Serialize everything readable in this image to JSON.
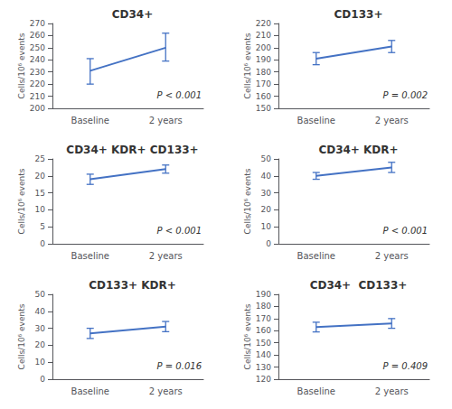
{
  "chart_data": [
    {
      "type": "line",
      "title": "CD34+",
      "ylabel": "Cells/10⁶ events",
      "categories": [
        "Baseline",
        "2 years"
      ],
      "values": [
        231,
        250
      ],
      "error_low": [
        11,
        11
      ],
      "error_high": [
        10,
        12
      ],
      "color": "#4472C4",
      "ylim": [
        200,
        270
      ],
      "yticks": [
        200,
        210,
        220,
        230,
        240,
        250,
        260,
        270
      ],
      "annotation": "P < 0.001",
      "grid": false
    },
    {
      "type": "line",
      "title": "CD133+",
      "ylabel": "Cells/10⁶ events",
      "categories": [
        "Baseline",
        "2 years"
      ],
      "values": [
        191,
        201
      ],
      "error_low": [
        5,
        5
      ],
      "error_high": [
        5,
        5
      ],
      "color": "#4472C4",
      "ylim": [
        150,
        220
      ],
      "yticks": [
        150,
        160,
        170,
        180,
        190,
        200,
        210,
        220
      ],
      "annotation": "P = 0.002",
      "grid": false
    },
    {
      "type": "line",
      "title": "CD34+ KDR+ CD133+",
      "ylabel": "Cells/10⁶ events",
      "categories": [
        "Baseline",
        "2 years"
      ],
      "values": [
        19.0,
        22.0
      ],
      "error_low": [
        1.5,
        1.2
      ],
      "error_high": [
        1.5,
        1.2
      ],
      "color": "#4472C4",
      "ylim": [
        0,
        25
      ],
      "yticks": [
        0,
        5,
        10,
        15,
        20,
        25
      ],
      "annotation": "P < 0.001",
      "grid": false
    },
    {
      "type": "line",
      "title": "CD34+ KDR+",
      "ylabel": "Cells/10⁶ events",
      "categories": [
        "Baseline",
        "2 years"
      ],
      "values": [
        40,
        45
      ],
      "error_low": [
        2,
        3
      ],
      "error_high": [
        2,
        3
      ],
      "color": "#4472C4",
      "ylim": [
        0,
        50
      ],
      "yticks": [
        0,
        10,
        20,
        30,
        40,
        50
      ],
      "annotation": "P < 0.001",
      "grid": false
    },
    {
      "type": "line",
      "title": "CD133+ KDR+",
      "ylabel": "Cells/10⁶ events",
      "categories": [
        "Baseline",
        "2 years"
      ],
      "values": [
        27,
        31
      ],
      "error_low": [
        3,
        3
      ],
      "error_high": [
        3,
        3
      ],
      "color": "#4472C4",
      "ylim": [
        0,
        50
      ],
      "yticks": [
        0,
        10,
        20,
        30,
        40,
        50
      ],
      "annotation": "P = 0.016",
      "grid": false
    },
    {
      "type": "line",
      "title": "CD34+  CD133+",
      "ylabel": "Cells/10⁶ events",
      "categories": [
        "Baseline",
        "2 years"
      ],
      "values": [
        163,
        166
      ],
      "error_low": [
        4,
        4
      ],
      "error_high": [
        4,
        4
      ],
      "color": "#4472C4",
      "ylim": [
        120,
        190
      ],
      "yticks": [
        120,
        130,
        140,
        150,
        160,
        170,
        180,
        190
      ],
      "annotation": "P = 0.409",
      "grid": false
    }
  ]
}
